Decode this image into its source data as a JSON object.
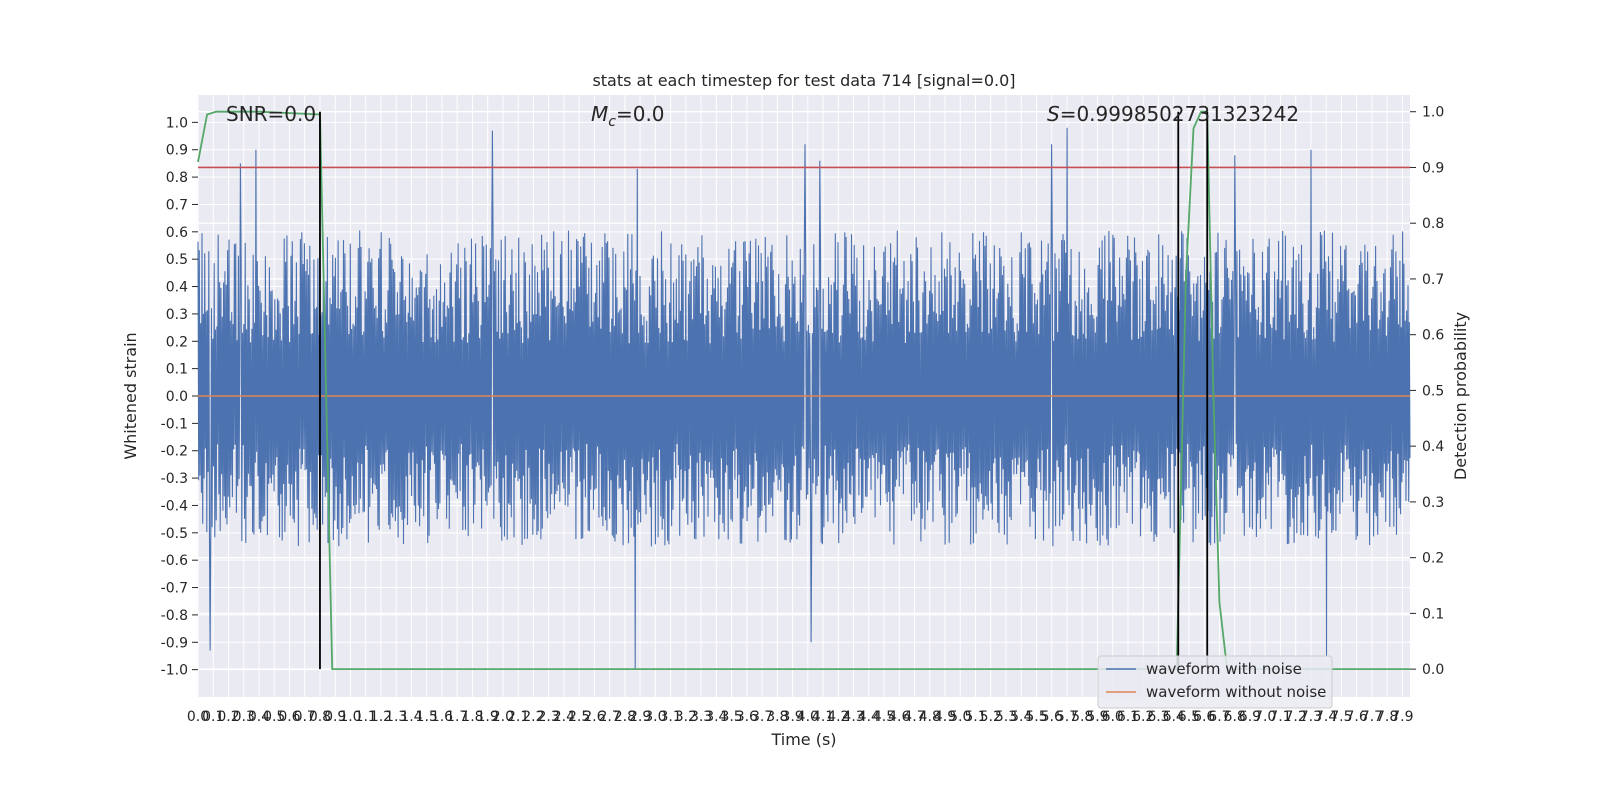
{
  "chart_data": {
    "type": "line",
    "title": "stats at each timestep for test data 714 [signal=0.0]",
    "xlabel": "Time (s)",
    "ylabel_left": "Whitened strain",
    "ylabel_right": "Detection probability",
    "xlim": [
      0.0,
      7.95
    ],
    "ylim_left": [
      -1.1,
      1.1
    ],
    "ylim_right": [
      -0.05,
      1.03
    ],
    "x_ticks": [
      "0.0",
      "0.1",
      "0.2",
      "0.3",
      "0.4",
      "0.5",
      "0.6",
      "0.7",
      "0.8",
      "0.9",
      "1.0",
      "1.1",
      "1.2",
      "1.3",
      "1.4",
      "1.5",
      "1.6",
      "1.7",
      "1.8",
      "1.9",
      "2.0",
      "2.1",
      "2.2",
      "2.3",
      "2.4",
      "2.5",
      "2.6",
      "2.7",
      "2.8",
      "2.9",
      "3.0",
      "3.1",
      "3.2",
      "3.3",
      "3.4",
      "3.5",
      "3.6",
      "3.7",
      "3.8",
      "3.9",
      "4.0",
      "4.1",
      "4.2",
      "4.3",
      "4.4",
      "4.5",
      "4.6",
      "4.7",
      "4.8",
      "4.9",
      "5.0",
      "5.1",
      "5.2",
      "5.3",
      "5.4",
      "5.5",
      "5.6",
      "5.7",
      "5.8",
      "5.9",
      "6.0",
      "6.1",
      "6.2",
      "6.3",
      "6.4",
      "6.5",
      "6.6",
      "6.7",
      "6.8",
      "6.9",
      "7.0",
      "7.1",
      "7.2",
      "7.3",
      "7.4",
      "7.5",
      "7.6",
      "7.7",
      "7.8",
      "7.9"
    ],
    "y_ticks_left": [
      "1.0",
      "0.9",
      "0.8",
      "0.7",
      "0.6",
      "0.5",
      "0.4",
      "0.3",
      "0.2",
      "0.1",
      "0.0",
      "-0.1",
      "-0.2",
      "-0.3",
      "-0.4",
      "-0.5",
      "-0.6",
      "-0.7",
      "-0.8",
      "-0.9",
      "-1.0"
    ],
    "y_ticks_right": [
      "1.0",
      "0.9",
      "0.8",
      "0.7",
      "0.6",
      "0.5",
      "0.4",
      "0.3",
      "0.2",
      "0.1",
      "0.0"
    ],
    "annotations": {
      "snr": "SNR=0.0",
      "mc_symbol": "M",
      "mc_sub": "c",
      "mc_value": "=0.0",
      "s_symbol": "S",
      "s_value": "=0.9998502731323242"
    },
    "series": [
      {
        "name": "waveform with noise",
        "color": "#4c72b0",
        "envelope_upper_approx": 0.55,
        "envelope_lower_approx": -0.5,
        "peaks": [
          {
            "x": 0.28,
            "y": 0.85
          },
          {
            "x": 0.38,
            "y": 0.9
          },
          {
            "x": 1.93,
            "y": 0.97
          },
          {
            "x": 2.88,
            "y": 0.83
          },
          {
            "x": 2.87,
            "y": -1.0
          },
          {
            "x": 0.08,
            "y": -0.93
          },
          {
            "x": 3.98,
            "y": 0.92
          },
          {
            "x": 4.08,
            "y": 0.86
          },
          {
            "x": 4.02,
            "y": -0.9
          },
          {
            "x": 5.6,
            "y": 0.92
          },
          {
            "x": 5.7,
            "y": 0.98
          },
          {
            "x": 6.8,
            "y": 0.88
          },
          {
            "x": 7.3,
            "y": 0.9
          },
          {
            "x": 7.4,
            "y": -0.95
          }
        ]
      },
      {
        "name": "waveform without noise",
        "color": "#dd8452",
        "y": 0.0
      },
      {
        "name": "",
        "color": "#55a868",
        "axis": "right",
        "points": [
          [
            0.0,
            0.91
          ],
          [
            0.06,
            0.995
          ],
          [
            0.12,
            1.0
          ],
          [
            0.4,
            1.0
          ],
          [
            0.8,
            0.995
          ],
          [
            0.88,
            0.0
          ],
          [
            6.42,
            0.0
          ],
          [
            6.48,
            0.7
          ],
          [
            6.53,
            0.97
          ],
          [
            6.58,
            1.0
          ],
          [
            6.62,
            1.0
          ],
          [
            6.66,
            0.5
          ],
          [
            6.7,
            0.12
          ],
          [
            6.75,
            0.0
          ],
          [
            7.95,
            0.0
          ]
        ]
      }
    ],
    "threshold": {
      "axis": "right",
      "y": 0.9,
      "color": "#c44e52"
    },
    "vlines": [
      0.8,
      6.43,
      6.62
    ],
    "vline_color": "#000000",
    "legend": {
      "placement": "lower right",
      "entries": [
        {
          "label": "waveform with noise",
          "color": "#4c72b0"
        },
        {
          "label": "waveform without noise",
          "color": "#dd8452"
        }
      ]
    },
    "grid": true,
    "background": "#eaeaf2"
  }
}
